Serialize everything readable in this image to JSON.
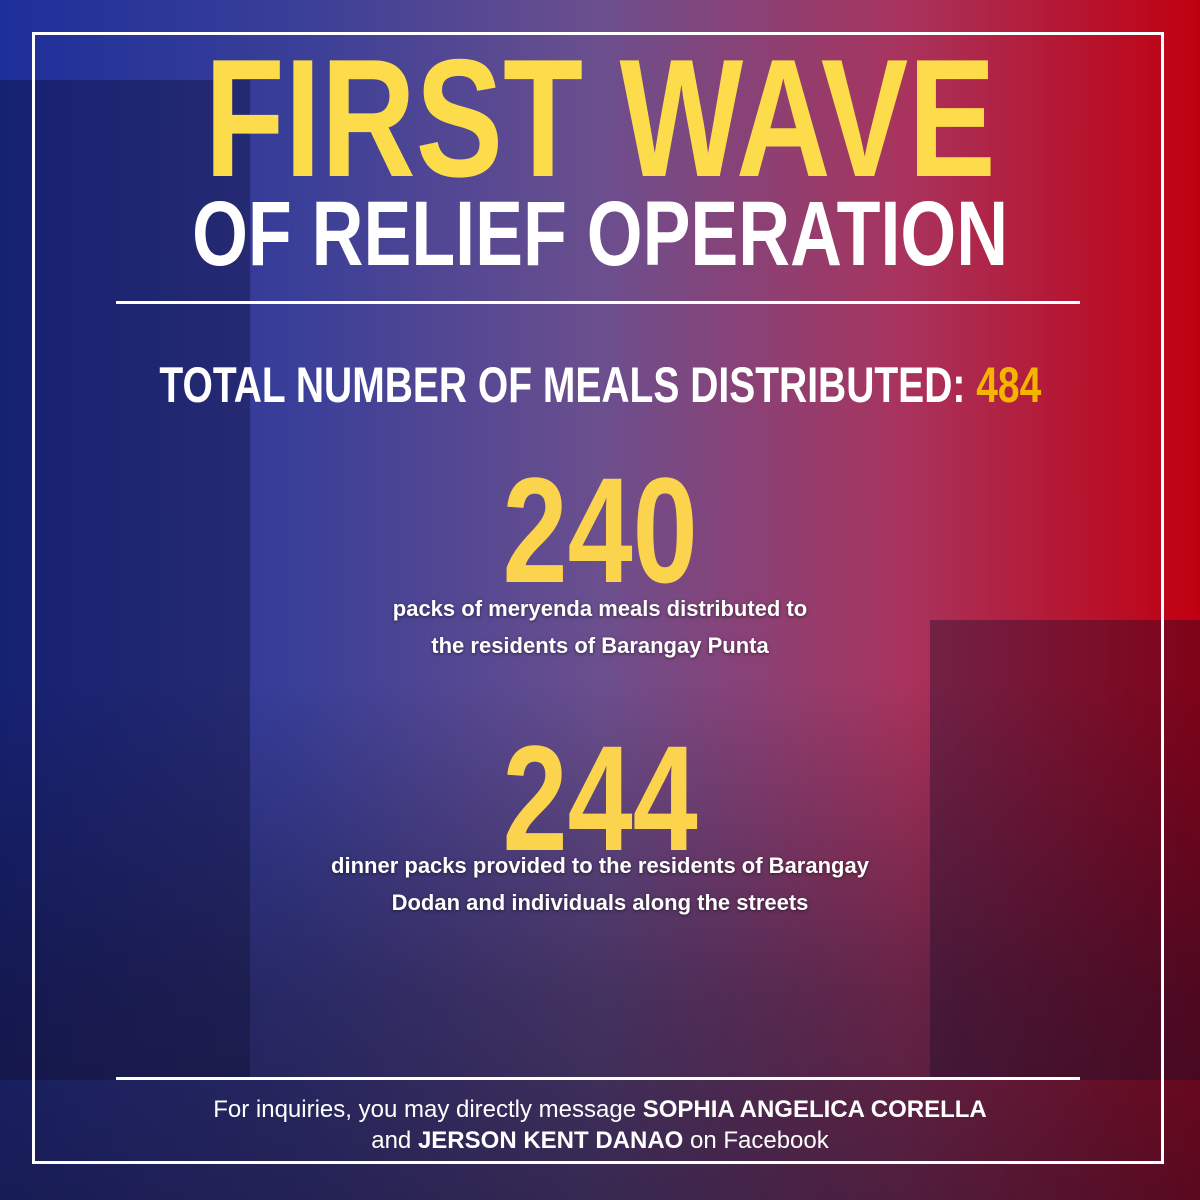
{
  "poster": {
    "title": "FIRST WAVE",
    "subtitle": "OF RELIEF OPERATION",
    "total": {
      "label": "TOTAL NUMBER OF MEALS DISTRIBUTED:",
      "value": "484"
    },
    "items": [
      {
        "number": "240",
        "lines": [
          "packs of meryenda meals distributed to",
          "the residents of Barangay Punta"
        ]
      },
      {
        "number": "244",
        "lines": [
          "dinner packs provided to the residents of Barangay",
          "Dodan and individuals along the streets"
        ]
      }
    ],
    "footer": {
      "line1": [
        "For inquiries, you may directly message ",
        "SOPHIA ANGELICA CORELLA"
      ],
      "line2": [
        "and ",
        "JERSON KENT DANAO",
        " on Facebook"
      ]
    }
  }
}
